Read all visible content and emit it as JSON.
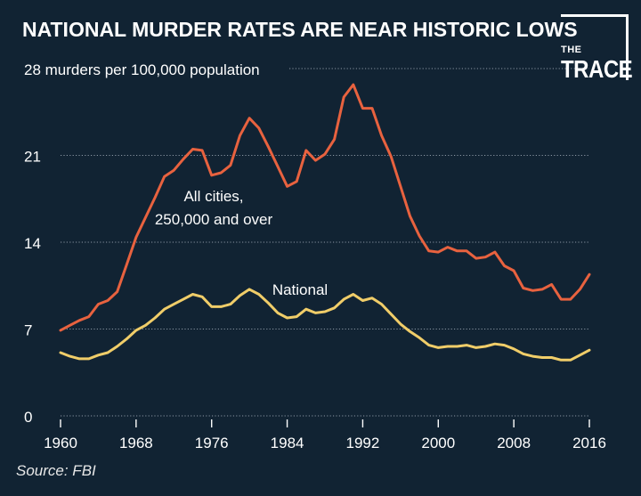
{
  "chart_data": {
    "type": "line",
    "title": "NATIONAL MURDER RATES ARE NEAR HISTORIC LOWS",
    "ylabel_unit": "murders per 100,000 population",
    "ylim": [
      0,
      28
    ],
    "yticks": [
      0,
      7,
      14,
      21,
      28
    ],
    "xlim": [
      1960,
      2016
    ],
    "xticks": [
      1960,
      1968,
      1976,
      1984,
      1992,
      2000,
      2008,
      2016
    ],
    "grid": true,
    "source": "Source: FBI",
    "x": [
      1960,
      1961,
      1962,
      1963,
      1964,
      1965,
      1966,
      1967,
      1968,
      1969,
      1970,
      1971,
      1972,
      1973,
      1974,
      1975,
      1976,
      1977,
      1978,
      1979,
      1980,
      1981,
      1982,
      1983,
      1984,
      1985,
      1986,
      1987,
      1988,
      1989,
      1990,
      1991,
      1992,
      1993,
      1994,
      1995,
      1996,
      1997,
      1998,
      1999,
      2000,
      2001,
      2002,
      2003,
      2004,
      2005,
      2006,
      2007,
      2008,
      2009,
      2010,
      2011,
      2012,
      2013,
      2014,
      2015,
      2016
    ],
    "series": [
      {
        "name": "All cities, 250,000 and over",
        "label_lines": [
          "All cities,",
          "250,000 and over"
        ],
        "color": "#e8623f",
        "values": [
          6.9,
          7.3,
          7.7,
          8.0,
          9.0,
          9.3,
          10.0,
          12.2,
          14.4,
          16.0,
          17.6,
          19.3,
          19.8,
          20.7,
          21.5,
          21.4,
          19.4,
          19.6,
          20.2,
          22.6,
          24.0,
          23.2,
          21.7,
          20.1,
          18.5,
          18.9,
          21.4,
          20.6,
          21.1,
          22.3,
          25.7,
          26.7,
          24.8,
          24.8,
          22.6,
          20.9,
          18.5,
          16.1,
          14.5,
          13.3,
          13.2,
          13.6,
          13.3,
          13.3,
          12.7,
          12.8,
          13.2,
          12.1,
          11.7,
          10.3,
          10.1,
          10.2,
          10.6,
          9.4,
          9.4,
          10.2,
          11.4
        ]
      },
      {
        "name": "National",
        "label_lines": [
          "National"
        ],
        "color": "#f0cd69",
        "values": [
          5.1,
          4.8,
          4.6,
          4.6,
          4.9,
          5.1,
          5.6,
          6.2,
          6.9,
          7.3,
          7.9,
          8.6,
          9.0,
          9.4,
          9.8,
          9.6,
          8.8,
          8.8,
          9.0,
          9.7,
          10.2,
          9.8,
          9.1,
          8.3,
          7.9,
          8.0,
          8.6,
          8.3,
          8.4,
          8.7,
          9.4,
          9.8,
          9.3,
          9.5,
          9.0,
          8.2,
          7.4,
          6.8,
          6.3,
          5.7,
          5.5,
          5.6,
          5.6,
          5.7,
          5.5,
          5.6,
          5.8,
          5.7,
          5.4,
          5.0,
          4.8,
          4.7,
          4.7,
          4.5,
          4.5,
          4.9,
          5.3
        ]
      }
    ]
  },
  "logo": {
    "line1": "THE",
    "line2": "TRACE"
  }
}
